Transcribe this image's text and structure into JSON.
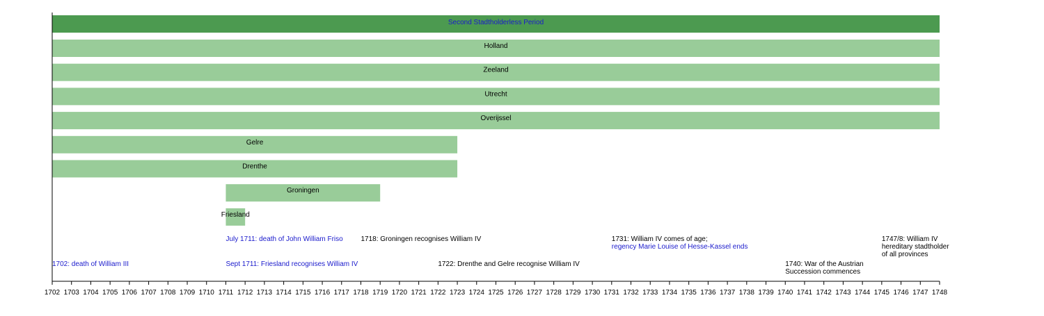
{
  "chart_data": {
    "type": "timeline",
    "xlim": [
      1702,
      1748
    ],
    "colors": {
      "period": "#4c9a50",
      "province": "#99cc99",
      "link": "#1a1acc",
      "text": "#000000"
    },
    "period": {
      "label": "Second Stadtholderless Period",
      "start": 1702,
      "end": 1748
    },
    "bars": [
      {
        "label": "Holland",
        "start": 1702,
        "end": 1748
      },
      {
        "label": "Zeeland",
        "start": 1702,
        "end": 1748
      },
      {
        "label": "Utrecht",
        "start": 1702,
        "end": 1748
      },
      {
        "label": "Overijssel",
        "start": 1702,
        "end": 1748
      },
      {
        "label": "Gelre",
        "start": 1702,
        "end": 1723
      },
      {
        "label": "Drenthe",
        "start": 1702,
        "end": 1723
      },
      {
        "label": "Groningen",
        "start": 1711,
        "end": 1719
      },
      {
        "label": "Friesland",
        "start": 1711,
        "end": 1712
      }
    ],
    "annotations": [
      {
        "year": 1702,
        "lines": [
          {
            "text": "1702: death of William III",
            "link": true
          }
        ]
      },
      {
        "year": 1711,
        "lines": [
          {
            "text": "July 1711: death of John William Friso",
            "link": true
          }
        ]
      },
      {
        "year": 1711,
        "lines": [
          {
            "text": "Sept 1711: Friesland recognises William IV",
            "link": true
          }
        ]
      },
      {
        "year": 1718,
        "lines": [
          {
            "text": "1718: Groningen recognises William IV",
            "link": false
          }
        ]
      },
      {
        "year": 1722,
        "lines": [
          {
            "text": "1722: Drenthe and Gelre recognise William IV",
            "link": false
          }
        ]
      },
      {
        "year": 1731,
        "lines": [
          {
            "text": "1731: William IV comes of age;",
            "link": false
          },
          {
            "text": "regency Marie Louise of Hesse-Kassel ends",
            "link": true
          }
        ]
      },
      {
        "year": 1740,
        "lines": [
          {
            "text": "1740: War of the Austrian",
            "link": false
          },
          {
            "text": "Succession commences",
            "link": false
          }
        ]
      },
      {
        "year": 1747,
        "lines": [
          {
            "text": "1747/8: William IV",
            "link": false
          },
          {
            "text": "hereditary stadtholder",
            "link": false
          },
          {
            "text": "of all provinces",
            "link": false
          }
        ]
      }
    ],
    "ticks": [
      1702,
      1703,
      1704,
      1705,
      1706,
      1707,
      1708,
      1709,
      1710,
      1711,
      1712,
      1713,
      1714,
      1715,
      1716,
      1717,
      1718,
      1719,
      1720,
      1721,
      1722,
      1723,
      1724,
      1725,
      1726,
      1727,
      1728,
      1729,
      1730,
      1731,
      1732,
      1733,
      1734,
      1735,
      1736,
      1737,
      1738,
      1739,
      1740,
      1741,
      1742,
      1743,
      1744,
      1745,
      1746,
      1747,
      1748
    ]
  }
}
